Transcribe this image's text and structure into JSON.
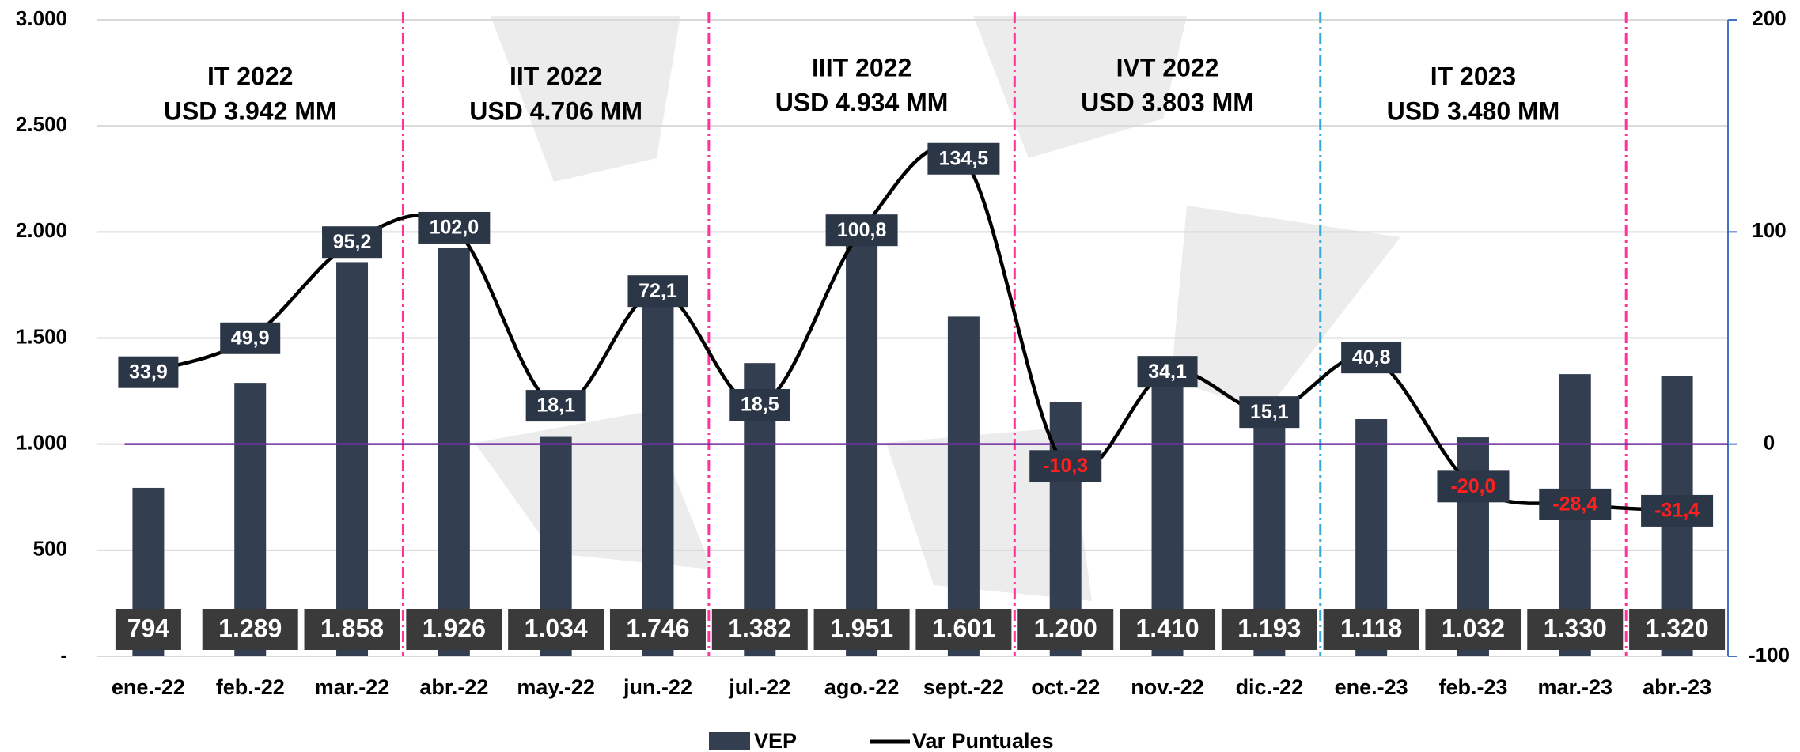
{
  "chart_data": {
    "type": "bar",
    "categories": [
      "ene.-22",
      "feb.-22",
      "mar.-22",
      "abr.-22",
      "may.-22",
      "jun.-22",
      "jul.-22",
      "ago.-22",
      "sept.-22",
      "oct.-22",
      "nov.-22",
      "dic.-22",
      "ene.-23",
      "feb.-23",
      "mar.-23",
      "abr.-23"
    ],
    "series": [
      {
        "name": "VEP",
        "type": "bar",
        "color": "#333f50",
        "values": [
          794,
          1289,
          1858,
          1926,
          1034,
          1746,
          1382,
          1951,
          1601,
          1200,
          1410,
          1193,
          1118,
          1032,
          1330,
          1320
        ],
        "value_labels": [
          "794",
          "1.289",
          "1.858",
          "1.926",
          "1.034",
          "1.746",
          "1.382",
          "1.951",
          "1.601",
          "1.200",
          "1.410",
          "1.193",
          "1.118",
          "1.032",
          "1.330",
          "1.320"
        ]
      },
      {
        "name": "Var Puntuales",
        "type": "line",
        "axis": "y2",
        "color": "#000000",
        "values": [
          33.9,
          49.9,
          95.2,
          102.0,
          18.1,
          72.1,
          18.5,
          100.8,
          134.5,
          -10.3,
          34.1,
          15.1,
          40.8,
          -20.0,
          -28.4,
          -31.4
        ],
        "value_labels": [
          "33,9",
          "49,9",
          "95,2",
          "102,0",
          "18,1",
          "72,1",
          "18,5",
          "100,8",
          "134,5",
          "-10,3",
          "34,1",
          "15,1",
          "40,8",
          "-20,0",
          "-28,4",
          "-31,4"
        ]
      }
    ],
    "ylim": [
      0,
      3000
    ],
    "yticks": [
      {
        "value": 0,
        "label": "-"
      },
      500,
      {
        "value": 1000,
        "label": "1.000"
      },
      {
        "value": 1500,
        "label": "1.500"
      },
      {
        "value": 2000,
        "label": "2.000"
      },
      {
        "value": 2500,
        "label": "2.500"
      },
      {
        "value": 3000,
        "label": "3.000"
      }
    ],
    "y2lim": [
      -100,
      200
    ],
    "y2ticks": [
      -100,
      0,
      100,
      200
    ],
    "grid": true,
    "legend": "bottom",
    "periods": [
      {
        "title": "IT 2022",
        "total": "USD 3.942 MM"
      },
      {
        "title": "IIT 2022",
        "total": "USD 4.706 MM"
      },
      {
        "title": "IIIT 2022",
        "total": "USD 4.934 MM"
      },
      {
        "title": "IVT 2022",
        "total": "USD 3.803 MM"
      },
      {
        "title": "IT 2023",
        "total": "USD 3.480 MM"
      }
    ]
  }
}
